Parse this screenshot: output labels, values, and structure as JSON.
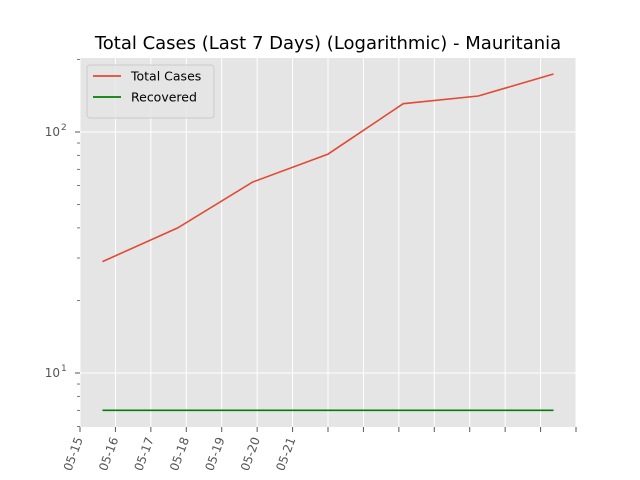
{
  "chart_data": {
    "type": "line",
    "title": "Total Cases (Last 7 Days) (Logarithmic) - Mauritania",
    "xlabel": "",
    "ylabel": "",
    "yscale": "log",
    "ylim": [
      6,
      200
    ],
    "y_tick_labels": [
      "10",
      "10"
    ],
    "y_tick_exponents": [
      "1",
      "2"
    ],
    "x": [
      "05-15",
      "05-16",
      "05-17",
      "05-18",
      "05-19",
      "05-20",
      "05-21"
    ],
    "x_tick_labels": [
      "05-15",
      "05-16",
      "05-17",
      "05-18",
      "05-19",
      "05-20",
      "05-21",
      "",
      "",
      "",
      "",
      "",
      "",
      "",
      ""
    ],
    "series": [
      {
        "name": "Total Cases",
        "color": "#e24a33",
        "values": [
          29,
          40,
          62,
          81,
          131,
          141,
          174
        ]
      },
      {
        "name": "Recovered",
        "color": "#008000",
        "values": [
          7,
          7,
          7,
          7,
          7,
          7,
          7
        ]
      }
    ],
    "grid": true,
    "legend_position": "top-left",
    "background": "#e5e5e5"
  }
}
